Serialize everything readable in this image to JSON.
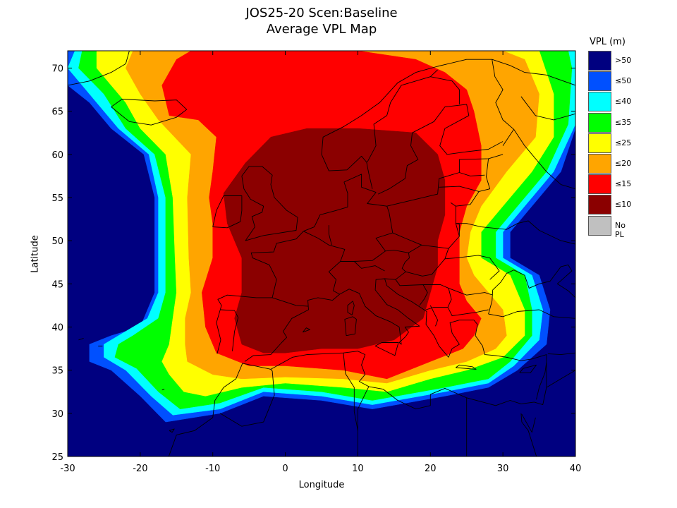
{
  "title_line1": "JOS25-20 Scen:Baseline",
  "title_line2": "Average VPL Map",
  "chart_data": {
    "type": "heatmap",
    "xlabel": "Longitude",
    "ylabel": "Latitude",
    "xlim": [
      -30,
      40
    ],
    "ylim": [
      25,
      72
    ],
    "x_ticks": [
      -30,
      -20,
      -10,
      0,
      10,
      20,
      30,
      40
    ],
    "y_ticks": [
      25,
      30,
      35,
      40,
      45,
      50,
      55,
      60,
      65,
      70
    ],
    "colorbar": {
      "title": "VPL (m)",
      "entries": [
        {
          "label": ">50",
          "color": "#000080"
        },
        {
          "label": "≤50",
          "color": "#0050ff"
        },
        {
          "label": "≤40",
          "color": "#00ffff"
        },
        {
          "label": "≤35",
          "color": "#00ff00"
        },
        {
          "label": "≤25",
          "color": "#ffff00"
        },
        {
          "label": "≤20",
          "color": "#ffa500"
        },
        {
          "label": "≤15",
          "color": "#ff0000"
        },
        {
          "label": "≤10",
          "color": "#8b0000"
        },
        {
          "label": "No PL",
          "color": "#c0c0c0"
        }
      ]
    },
    "regions": [
      {
        "level": ">50",
        "polygon": [
          [
            -30,
            25
          ],
          [
            40,
            25
          ],
          [
            40,
            72
          ],
          [
            -30,
            72
          ]
        ]
      },
      {
        "level": "≤50",
        "polygon": [
          [
            -27,
            66
          ],
          [
            -24,
            63
          ],
          [
            -19.5,
            60
          ],
          [
            -18,
            55
          ],
          [
            -18,
            48
          ],
          [
            -18,
            44
          ],
          [
            -20,
            40
          ],
          [
            -24,
            39
          ],
          [
            -27,
            38
          ],
          [
            -27,
            36
          ],
          [
            -24,
            35
          ],
          [
            -20,
            32
          ],
          [
            -16.5,
            29
          ],
          [
            -9,
            30
          ],
          [
            -3,
            32
          ],
          [
            5,
            31.5
          ],
          [
            12,
            30.5
          ],
          [
            22,
            32
          ],
          [
            28,
            33
          ],
          [
            32,
            35
          ],
          [
            36,
            38
          ],
          [
            36.5,
            42
          ],
          [
            35,
            46
          ],
          [
            31,
            48
          ],
          [
            31,
            51
          ],
          [
            34,
            54
          ],
          [
            38,
            58
          ],
          [
            40,
            63
          ],
          [
            40,
            72
          ],
          [
            -30,
            72
          ],
          [
            -30,
            68
          ]
        ]
      },
      {
        "level": "≤40",
        "polygon": [
          [
            -26,
            66
          ],
          [
            -23,
            63
          ],
          [
            -18.8,
            60
          ],
          [
            -17.5,
            55
          ],
          [
            -17.5,
            48
          ],
          [
            -17.5,
            44
          ],
          [
            -19,
            41
          ],
          [
            -23,
            39
          ],
          [
            -25,
            38
          ],
          [
            -25,
            36.5
          ],
          [
            -22,
            35
          ],
          [
            -18.5,
            32
          ],
          [
            -15.5,
            29.8
          ],
          [
            -9,
            30.5
          ],
          [
            -3,
            32.5
          ],
          [
            5,
            32
          ],
          [
            12,
            31
          ],
          [
            22,
            32.5
          ],
          [
            28,
            33.5
          ],
          [
            31.5,
            35.5
          ],
          [
            35,
            38.5
          ],
          [
            35.5,
            42
          ],
          [
            34,
            46
          ],
          [
            30,
            48
          ],
          [
            30,
            51
          ],
          [
            33,
            54
          ],
          [
            37,
            58
          ],
          [
            40,
            63.5
          ],
          [
            40,
            72
          ],
          [
            -29,
            72
          ],
          [
            -30,
            70
          ]
        ]
      },
      {
        "level": "≤35",
        "polygon": [
          [
            -25,
            67
          ],
          [
            -22,
            63
          ],
          [
            -18,
            60
          ],
          [
            -16.5,
            55
          ],
          [
            -16.5,
            48
          ],
          [
            -16.5,
            44
          ],
          [
            -17.5,
            41
          ],
          [
            -21,
            39
          ],
          [
            -23,
            38
          ],
          [
            -23.5,
            36.5
          ],
          [
            -20.5,
            35.2
          ],
          [
            -17.5,
            32.5
          ],
          [
            -14.5,
            30.5
          ],
          [
            -9,
            31.2
          ],
          [
            -3,
            33
          ],
          [
            5,
            32.5
          ],
          [
            12,
            31.5
          ],
          [
            22,
            33
          ],
          [
            28,
            34
          ],
          [
            31,
            36
          ],
          [
            34,
            39
          ],
          [
            34,
            42
          ],
          [
            33,
            46
          ],
          [
            29,
            48
          ],
          [
            29,
            51
          ],
          [
            32,
            54
          ],
          [
            36,
            58
          ],
          [
            39,
            63.5
          ],
          [
            39.5,
            70
          ],
          [
            39,
            72
          ],
          [
            -28,
            72
          ],
          [
            -28.5,
            70
          ]
        ]
      },
      {
        "level": "≤25",
        "polygon": [
          [
            -22,
            66
          ],
          [
            -20,
            63
          ],
          [
            -16.5,
            60
          ],
          [
            -15.5,
            55
          ],
          [
            -15.2,
            48
          ],
          [
            -15,
            44
          ],
          [
            -15.5,
            41
          ],
          [
            -16,
            38
          ],
          [
            -17,
            36
          ],
          [
            -16,
            34.5
          ],
          [
            -14,
            32.5
          ],
          [
            -11,
            32
          ],
          [
            -6,
            33
          ],
          [
            0,
            33.5
          ],
          [
            8,
            33
          ],
          [
            14,
            32.5
          ],
          [
            20,
            34
          ],
          [
            25,
            35
          ],
          [
            30,
            36.5
          ],
          [
            33,
            39
          ],
          [
            33,
            42
          ],
          [
            31,
            46
          ],
          [
            27,
            48
          ],
          [
            27,
            51
          ],
          [
            30,
            54
          ],
          [
            34,
            58
          ],
          [
            37,
            62
          ],
          [
            37,
            67
          ],
          [
            35,
            72
          ],
          [
            -26,
            72
          ],
          [
            -26,
            70
          ]
        ]
      },
      {
        "level": "≤20",
        "polygon": [
          [
            -20,
            67
          ],
          [
            -17.5,
            64
          ],
          [
            -13,
            60
          ],
          [
            -13.5,
            55
          ],
          [
            -13.3,
            48
          ],
          [
            -13,
            44
          ],
          [
            -13.8,
            41
          ],
          [
            -13.8,
            38
          ],
          [
            -13.5,
            36
          ],
          [
            -10,
            34.5
          ],
          [
            -6,
            34
          ],
          [
            0,
            34.2
          ],
          [
            8,
            34
          ],
          [
            14,
            33.5
          ],
          [
            20,
            35
          ],
          [
            25,
            36
          ],
          [
            29,
            37.5
          ],
          [
            30.5,
            39
          ],
          [
            30,
            42
          ],
          [
            28,
            44
          ],
          [
            26,
            46
          ],
          [
            25,
            48
          ],
          [
            25.5,
            51
          ],
          [
            27,
            54
          ],
          [
            30.5,
            58
          ],
          [
            34.5,
            62
          ],
          [
            35,
            67
          ],
          [
            33,
            71
          ],
          [
            30,
            72
          ],
          [
            -21,
            72
          ],
          [
            -22,
            70
          ]
        ]
      },
      {
        "level": "≤15",
        "polygon": [
          [
            -17,
            68
          ],
          [
            -16,
            64.5
          ],
          [
            -12,
            64
          ],
          [
            -9.5,
            62
          ],
          [
            -10,
            58
          ],
          [
            -10.5,
            55
          ],
          [
            -10,
            52
          ],
          [
            -10,
            48
          ],
          [
            -11.5,
            44
          ],
          [
            -11,
            40
          ],
          [
            -9.5,
            37
          ],
          [
            -5,
            35.5
          ],
          [
            0,
            35.5
          ],
          [
            8,
            35
          ],
          [
            14,
            34
          ],
          [
            20,
            36
          ],
          [
            24.5,
            37.5
          ],
          [
            26,
            39
          ],
          [
            27,
            41
          ],
          [
            25,
            43
          ],
          [
            24,
            45
          ],
          [
            24,
            48
          ],
          [
            24,
            51
          ],
          [
            25,
            54
          ],
          [
            27,
            57
          ],
          [
            27,
            61
          ],
          [
            26,
            65
          ],
          [
            25,
            67.5
          ],
          [
            22,
            69.5
          ],
          [
            18,
            71
          ],
          [
            10,
            72
          ],
          [
            -13,
            72
          ],
          [
            -15,
            71
          ]
        ]
      },
      {
        "level": "≤10",
        "polygon": [
          [
            -8.5,
            55.5
          ],
          [
            -8,
            52
          ],
          [
            -6,
            48
          ],
          [
            -6,
            44
          ],
          [
            -7,
            41
          ],
          [
            -6,
            38
          ],
          [
            -3,
            37
          ],
          [
            0,
            37
          ],
          [
            5,
            37.5
          ],
          [
            10,
            37.5
          ],
          [
            15,
            38.5
          ],
          [
            19,
            41
          ],
          [
            20,
            44
          ],
          [
            21,
            47
          ],
          [
            21,
            50
          ],
          [
            22,
            53
          ],
          [
            22,
            57
          ],
          [
            21,
            60
          ],
          [
            18,
            62.5
          ],
          [
            10,
            63
          ],
          [
            3,
            63
          ],
          [
            -2,
            62
          ],
          [
            -5.5,
            59
          ]
        ]
      }
    ],
    "map_features": [
      "coastlines",
      "country borders"
    ]
  }
}
